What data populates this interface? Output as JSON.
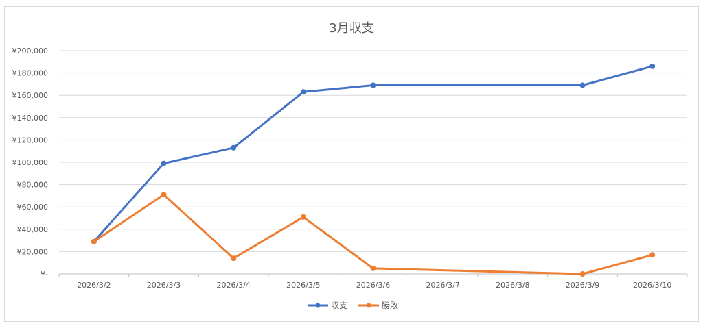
{
  "chart_data": {
    "type": "line",
    "title": "3月収支",
    "xlabel": "",
    "ylabel": "",
    "categories": [
      "2026/3/2",
      "2026/3/3",
      "2026/3/4",
      "2026/3/5",
      "2026/3/6",
      "2026/3/7",
      "2026/3/8",
      "2026/3/9",
      "2026/3/10"
    ],
    "ylim": [
      0,
      200000
    ],
    "y_ticks": [
      0,
      20000,
      40000,
      60000,
      80000,
      100000,
      120000,
      140000,
      160000,
      180000,
      200000
    ],
    "y_tick_labels": [
      "¥-",
      "¥20,000",
      "¥40,000",
      "¥60,000",
      "¥80,000",
      "¥100,000",
      "¥120,000",
      "¥140,000",
      "¥160,000",
      "¥180,000",
      "¥200,000"
    ],
    "grid": true,
    "legend_position": "bottom",
    "series": [
      {
        "name": "収支",
        "color": "#4472C4",
        "points": [
          {
            "x": "2026/3/2",
            "y": 29000
          },
          {
            "x": "2026/3/3",
            "y": 99000
          },
          {
            "x": "2026/3/4",
            "y": 113000
          },
          {
            "x": "2026/3/5",
            "y": 163000
          },
          {
            "x": "2026/3/6",
            "y": 169000
          },
          {
            "x": "2026/3/9",
            "y": 169000
          },
          {
            "x": "2026/3/10",
            "y": 186000
          }
        ]
      },
      {
        "name": "勝敗",
        "color": "#ED7D31",
        "points": [
          {
            "x": "2026/3/2",
            "y": 29000
          },
          {
            "x": "2026/3/3",
            "y": 71000
          },
          {
            "x": "2026/3/4",
            "y": 14000
          },
          {
            "x": "2026/3/5",
            "y": 51000
          },
          {
            "x": "2026/3/6",
            "y": 5000
          },
          {
            "x": "2026/3/9",
            "y": 0
          },
          {
            "x": "2026/3/10",
            "y": 17000
          }
        ]
      }
    ]
  }
}
